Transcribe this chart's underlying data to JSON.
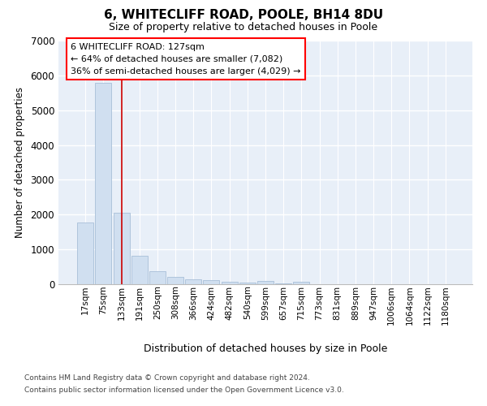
{
  "title1": "6, WHITECLIFF ROAD, POOLE, BH14 8DU",
  "title2": "Size of property relative to detached houses in Poole",
  "xlabel": "Distribution of detached houses by size in Poole",
  "ylabel": "Number of detached properties",
  "bar_labels": [
    "17sqm",
    "75sqm",
    "133sqm",
    "191sqm",
    "250sqm",
    "308sqm",
    "366sqm",
    "424sqm",
    "482sqm",
    "540sqm",
    "599sqm",
    "657sqm",
    "715sqm",
    "773sqm",
    "831sqm",
    "889sqm",
    "947sqm",
    "1006sqm",
    "1064sqm",
    "1122sqm",
    "1180sqm"
  ],
  "bar_values": [
    1780,
    5780,
    2060,
    820,
    370,
    220,
    130,
    110,
    75,
    55,
    90,
    15,
    60,
    0,
    0,
    0,
    0,
    0,
    0,
    0,
    0
  ],
  "bar_color": "#d0dff0",
  "bar_edge_color": "#a8bfd8",
  "vline_color": "#cc0000",
  "vline_x": 2.0,
  "annotation_line1": "6 WHITECLIFF ROAD: 127sqm",
  "annotation_line2": "← 64% of detached houses are smaller (7,082)",
  "annotation_line3": "36% of semi-detached houses are larger (4,029) →",
  "ylim": [
    0,
    7000
  ],
  "yticks": [
    0,
    1000,
    2000,
    3000,
    4000,
    5000,
    6000,
    7000
  ],
  "footer1": "Contains HM Land Registry data © Crown copyright and database right 2024.",
  "footer2": "Contains public sector information licensed under the Open Government Licence v3.0.",
  "bg_color": "#ffffff",
  "plot_bg_color": "#e8eff8"
}
